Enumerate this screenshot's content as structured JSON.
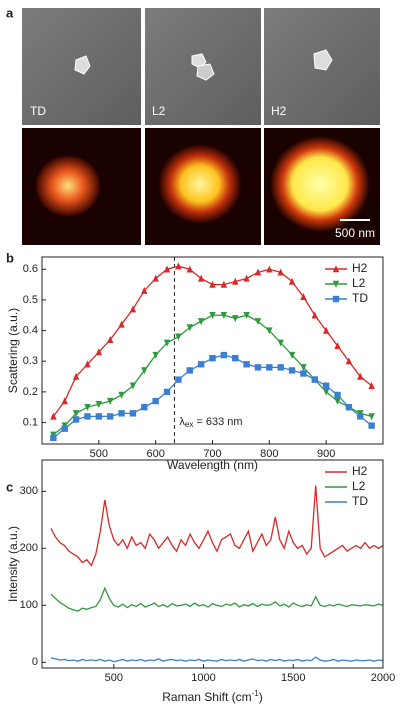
{
  "panel_a": {
    "letter": "a",
    "labels": [
      "TD",
      "L2",
      "H2"
    ],
    "scale_bar": "500 nm"
  },
  "chart_data": [
    {
      "type": "line",
      "letter": "b",
      "x_label": "Wavelength (nm)",
      "y_label": "Scattering (a.u.)",
      "x": [
        420,
        440,
        460,
        480,
        500,
        520,
        540,
        560,
        580,
        600,
        620,
        640,
        660,
        680,
        700,
        720,
        740,
        760,
        780,
        800,
        820,
        840,
        860,
        880,
        900,
        920,
        940,
        960,
        980
      ],
      "series": [
        {
          "name": "H2",
          "color": "#d42a2a",
          "marker": "triangle-up",
          "values": [
            0.12,
            0.17,
            0.25,
            0.29,
            0.33,
            0.37,
            0.42,
            0.47,
            0.53,
            0.57,
            0.6,
            0.61,
            0.6,
            0.57,
            0.55,
            0.55,
            0.56,
            0.57,
            0.59,
            0.6,
            0.59,
            0.56,
            0.51,
            0.45,
            0.4,
            0.35,
            0.3,
            0.25,
            0.22
          ]
        },
        {
          "name": "L2",
          "color": "#2e9a3e",
          "marker": "triangle-down",
          "values": [
            0.06,
            0.09,
            0.13,
            0.15,
            0.16,
            0.17,
            0.19,
            0.22,
            0.27,
            0.32,
            0.36,
            0.38,
            0.41,
            0.43,
            0.45,
            0.45,
            0.44,
            0.45,
            0.43,
            0.4,
            0.36,
            0.32,
            0.28,
            0.24,
            0.2,
            0.17,
            0.15,
            0.13,
            0.12
          ]
        },
        {
          "name": "TD",
          "color": "#3b7fd0",
          "marker": "square",
          "values": [
            0.05,
            0.08,
            0.11,
            0.12,
            0.12,
            0.12,
            0.13,
            0.13,
            0.15,
            0.17,
            0.2,
            0.24,
            0.27,
            0.29,
            0.31,
            0.32,
            0.31,
            0.29,
            0.28,
            0.28,
            0.28,
            0.27,
            0.26,
            0.24,
            0.22,
            0.19,
            0.15,
            0.12,
            0.09
          ]
        }
      ],
      "xlim": [
        400,
        1000
      ],
      "xticks": [
        500,
        600,
        700,
        800,
        900
      ],
      "ylim": [
        0.03,
        0.64
      ],
      "yticks": [
        0.1,
        0.2,
        0.3,
        0.4,
        0.5,
        0.6
      ],
      "annotation": {
        "x": 633,
        "symbol": "λ",
        "subscript": "ex",
        "text": " = 633 nm"
      },
      "legend": "upper-right"
    },
    {
      "type": "line",
      "letter": "c",
      "x_label": {
        "text": "Raman Shift (cm",
        "superscript": "-1",
        "suffix": ")"
      },
      "y_label": "Intensity (a.u.)",
      "x": [
        150,
        175,
        200,
        225,
        250,
        275,
        300,
        325,
        350,
        375,
        400,
        425,
        450,
        475,
        500,
        525,
        550,
        575,
        600,
        625,
        650,
        675,
        700,
        725,
        750,
        775,
        800,
        825,
        850,
        875,
        900,
        925,
        950,
        975,
        1000,
        1025,
        1050,
        1075,
        1100,
        1125,
        1150,
        1175,
        1200,
        1225,
        1250,
        1275,
        1300,
        1325,
        1350,
        1375,
        1400,
        1425,
        1450,
        1475,
        1500,
        1525,
        1550,
        1575,
        1600,
        1625,
        1650,
        1675,
        1700,
        1725,
        1750,
        1775,
        1800,
        1825,
        1850,
        1875,
        1900,
        1925,
        1950,
        1975,
        2000
      ],
      "series": [
        {
          "name": "H2",
          "color": "#d42a2a",
          "values": [
            235,
            220,
            210,
            205,
            195,
            190,
            185,
            175,
            180,
            170,
            190,
            230,
            285,
            240,
            215,
            205,
            215,
            200,
            220,
            205,
            210,
            200,
            225,
            215,
            200,
            210,
            220,
            205,
            195,
            215,
            205,
            225,
            210,
            200,
            215,
            230,
            210,
            195,
            215,
            220,
            225,
            205,
            200,
            215,
            230,
            195,
            210,
            225,
            205,
            215,
            255,
            215,
            200,
            230,
            210,
            200,
            205,
            190,
            200,
            310,
            200,
            185,
            190,
            195,
            200,
            205,
            195,
            200,
            205,
            200,
            210,
            200,
            205,
            200,
            205
          ]
        },
        {
          "name": "L2",
          "color": "#2e9a3e",
          "values": [
            120,
            112,
            105,
            100,
            95,
            92,
            90,
            95,
            93,
            96,
            98,
            110,
            130,
            112,
            100,
            97,
            102,
            96,
            101,
            98,
            103,
            97,
            100,
            104,
            98,
            101,
            97,
            103,
            99,
            100,
            102,
            98,
            104,
            99,
            101,
            97,
            103,
            100,
            98,
            102,
            100,
            104,
            97,
            101,
            99,
            103,
            98,
            102,
            100,
            101,
            106,
            99,
            102,
            97,
            104,
            100,
            98,
            101,
            99,
            115,
            100,
            98,
            101,
            99,
            102,
            100,
            98,
            101,
            100,
            99,
            101,
            100,
            99,
            102,
            100
          ]
        },
        {
          "name": "TD",
          "color": "#3b7fd0",
          "values": [
            8,
            6,
            4,
            5,
            3,
            4,
            2,
            5,
            3,
            4,
            3,
            5,
            2,
            4,
            1,
            3,
            5,
            2,
            4,
            3,
            5,
            2,
            4,
            3,
            6,
            2,
            4,
            5,
            3,
            4,
            2,
            4,
            3,
            5,
            2,
            4,
            3,
            2,
            5,
            3,
            4,
            3,
            5,
            2,
            4,
            6,
            3,
            4,
            2,
            5,
            3,
            5,
            2,
            4,
            3,
            5,
            2,
            4,
            3,
            9,
            4,
            2,
            3,
            5,
            2,
            4,
            3,
            2,
            4,
            3,
            3,
            4,
            2,
            4,
            3
          ]
        }
      ],
      "xlim": [
        100,
        2000
      ],
      "xticks": [
        500,
        1000,
        1500,
        2000
      ],
      "ylim": [
        -10,
        355
      ],
      "yticks": [
        0,
        100,
        200,
        300
      ],
      "legend": "upper-right"
    }
  ]
}
